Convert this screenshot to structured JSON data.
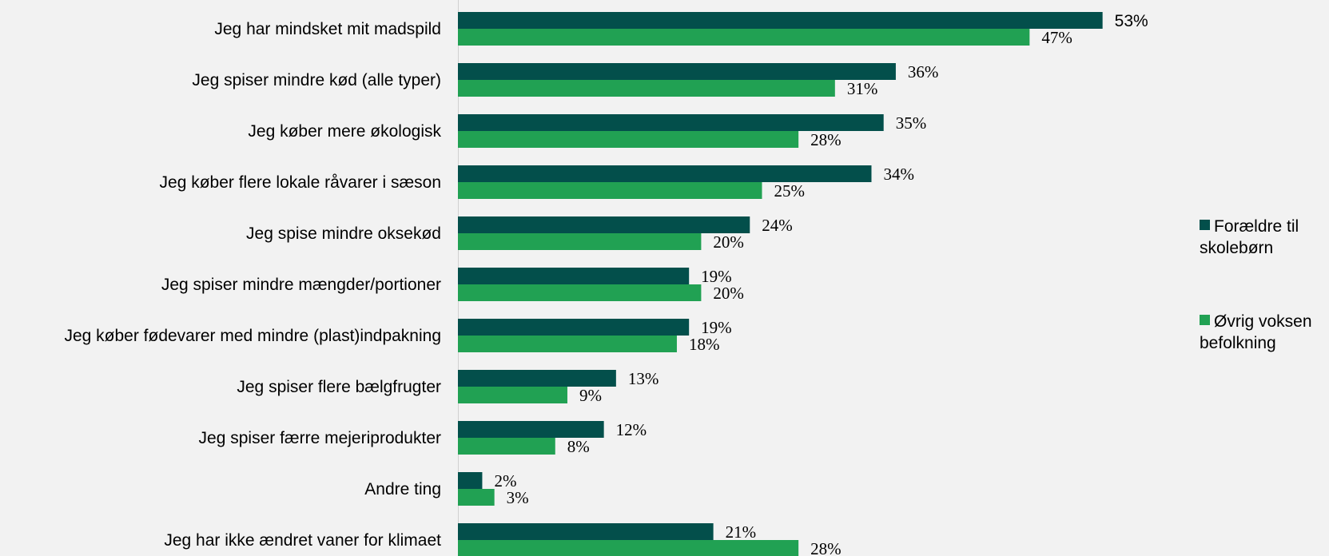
{
  "chart_data": {
    "type": "bar",
    "orientation": "horizontal",
    "categories": [
      "Jeg har mindsket mit madspild",
      "Jeg spiser mindre kød (alle typer)",
      "Jeg køber mere økologisk",
      "Jeg køber flere lokale råvarer i sæson",
      "Jeg spise mindre oksekød",
      "Jeg spiser mindre mængder/portioner",
      "Jeg køber fødevarer med mindre (plast)indpakning",
      "Jeg spiser flere bælgfrugter",
      "Jeg spiser færre mejeriprodukter",
      "Andre ting",
      "Jeg har ikke ændret vaner for klimaet"
    ],
    "series": [
      {
        "name": "Forældre til skolebørn",
        "legend_lines": [
          "Forældre til",
          "skolebørn"
        ],
        "color": "#034f4b",
        "values": [
          53,
          36,
          35,
          34,
          24,
          19,
          19,
          13,
          12,
          2,
          21
        ],
        "labels": [
          "53%",
          "36%",
          "35%",
          "34%",
          "24%",
          "19%",
          "19%",
          "13%",
          "12%",
          "2%",
          "21%"
        ]
      },
      {
        "name": "Øvrig voksen befolkning",
        "legend_lines": [
          "Øvrig voksen",
          "befolkning"
        ],
        "color": "#21a153",
        "values": [
          47,
          31,
          28,
          25,
          20,
          20,
          18,
          9,
          8,
          3,
          28
        ],
        "labels": [
          "47%",
          "31%",
          "28%",
          "25%",
          "20%",
          "20%",
          "18%",
          "9%",
          "8%",
          "3%",
          "28%"
        ]
      }
    ],
    "unit": "%",
    "xlim": [
      0,
      100
    ],
    "grid": false,
    "legend_position": "right"
  }
}
